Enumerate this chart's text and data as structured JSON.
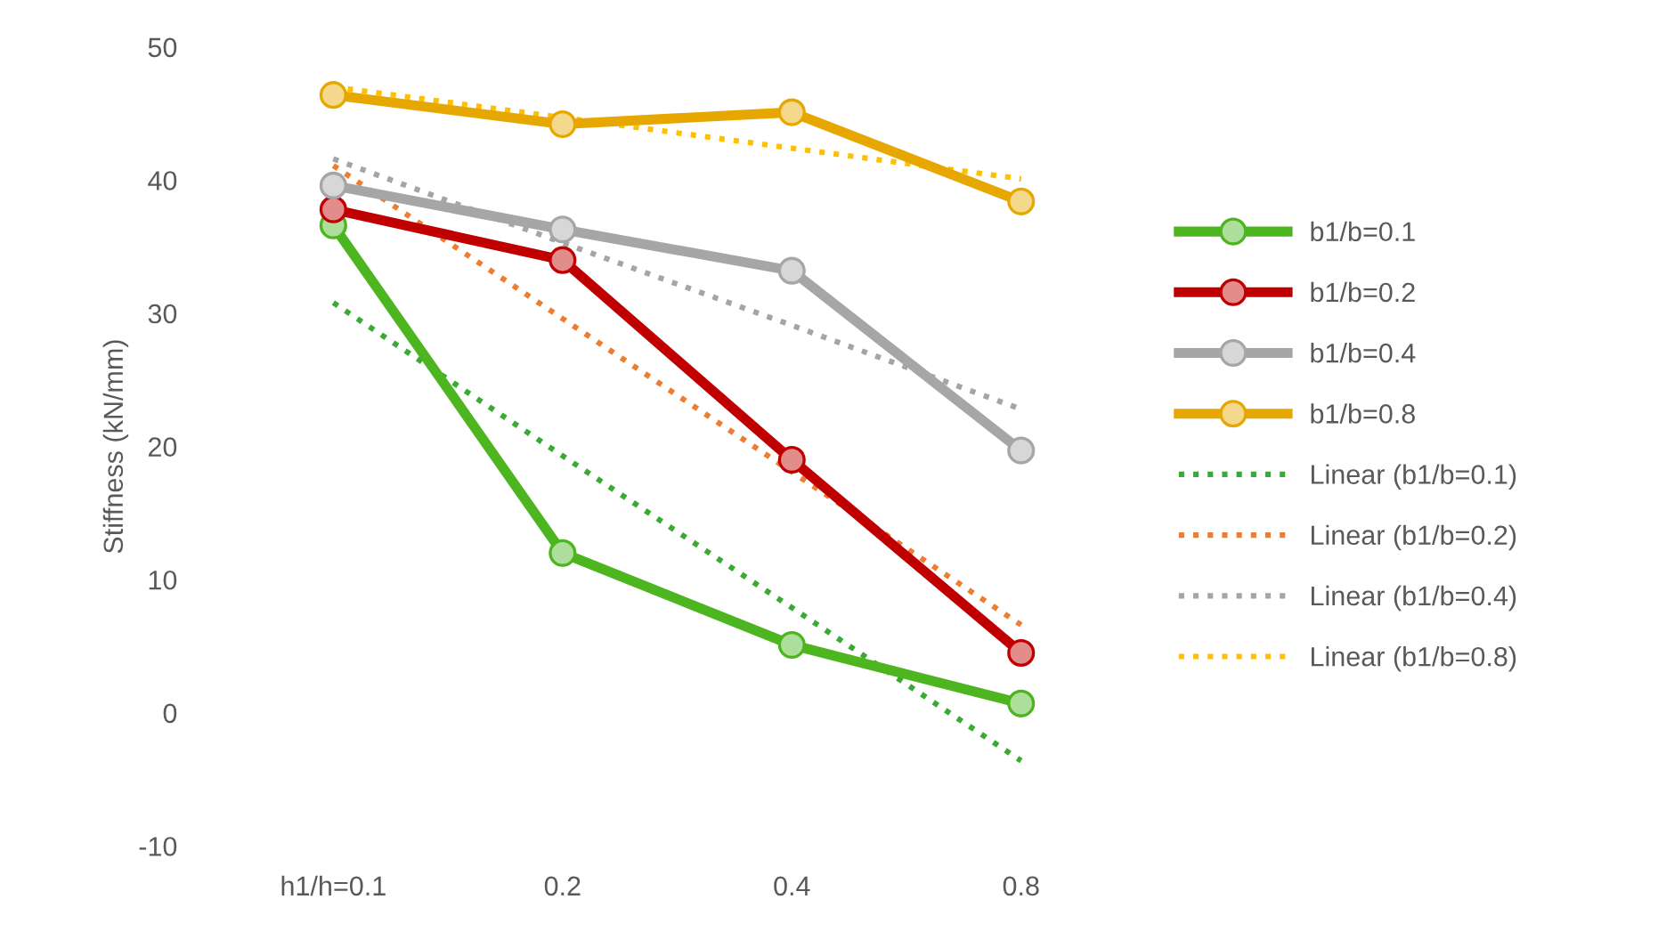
{
  "chart_data": {
    "type": "line",
    "ylabel": "Stiffness (kN/mm)",
    "categories": [
      "h1/h=0.1",
      "0.2",
      "0.4",
      "0.8"
    ],
    "ylim": [
      -10,
      50
    ],
    "yticks": [
      -10,
      0,
      10,
      20,
      30,
      40,
      50
    ],
    "grid": false,
    "legend": "right",
    "marker": "circle",
    "line_style": "solid",
    "series": [
      {
        "name": "b1/b=0.1",
        "color": "#4cb520",
        "values": [
          36.6,
          12.0,
          5.1,
          0.7
        ]
      },
      {
        "name": "b1/b=0.2",
        "color": "#c00000",
        "values": [
          37.8,
          34.0,
          19.0,
          4.5
        ]
      },
      {
        "name": "b1/b=0.4",
        "color": "#a6a6a6",
        "values": [
          39.6,
          36.3,
          33.2,
          19.7
        ]
      },
      {
        "name": "b1/b=0.8",
        "color": "#e6a800",
        "values": [
          46.4,
          44.2,
          45.1,
          38.4
        ]
      },
      {
        "name": "Linear (b1/b=0.1)",
        "color": "#3aaa35",
        "marker": "none",
        "line_style": "dotted",
        "values": [
          30.8,
          19.3,
          7.9,
          -3.6
        ]
      },
      {
        "name": "Linear (b1/b=0.2)",
        "color": "#ed7d31",
        "marker": "none",
        "line_style": "dotted",
        "values": [
          41.1,
          29.6,
          18.1,
          6.6
        ]
      },
      {
        "name": "Linear (b1/b=0.4)",
        "color": "#a5a5a5",
        "marker": "none",
        "line_style": "dotted",
        "values": [
          41.6,
          35.3,
          29.1,
          22.8
        ]
      },
      {
        "name": "Linear (b1/b=0.8)",
        "color": "#ffc000",
        "marker": "none",
        "line_style": "dotted",
        "values": [
          47.0,
          44.7,
          42.4,
          40.1
        ]
      }
    ]
  }
}
